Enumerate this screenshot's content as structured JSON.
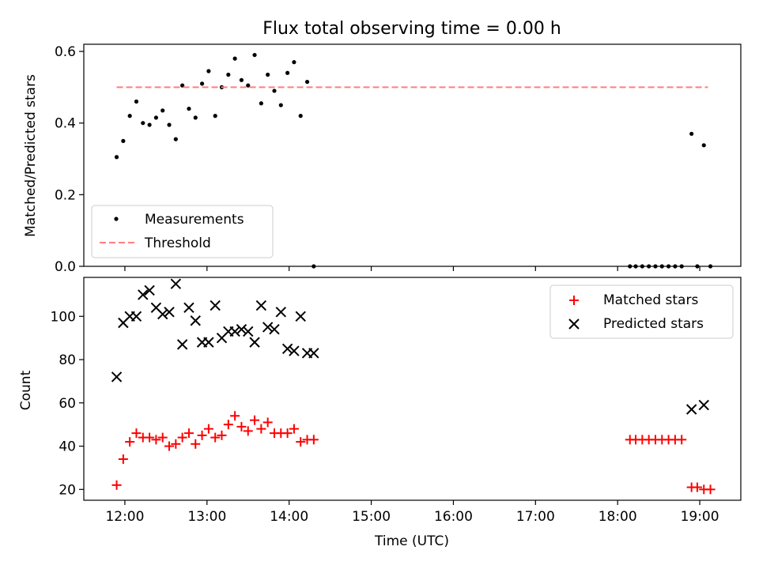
{
  "colors": {
    "measurement": "#000000",
    "threshold": "#ff7f7f",
    "matched": "#ff0000",
    "predicted": "#000000",
    "axes": "#000000",
    "legend_border": "#cccccc"
  },
  "chart_data": [
    {
      "type": "scatter",
      "title": "Flux total observing time = 0.00 h",
      "xlabel": "",
      "ylabel": "Matched/Predicted stars",
      "xlim": [
        11.5,
        19.5
      ],
      "ylim": [
        0,
        0.62
      ],
      "yticks": [
        0,
        0.2,
        0.4,
        0.6
      ],
      "ytick_labels": [
        "0.0",
        "0.2",
        "0.4",
        "0.6"
      ],
      "xticks": [
        12,
        13,
        14,
        15,
        16,
        17,
        18,
        19
      ],
      "legend_position": "lower-left",
      "series": [
        {
          "name": "Measurements",
          "marker": "dot",
          "x": [
            11.9,
            11.98,
            12.06,
            12.14,
            12.22,
            12.3,
            12.38,
            12.46,
            12.54,
            12.62,
            12.7,
            12.78,
            12.86,
            12.94,
            13.02,
            13.1,
            13.18,
            13.26,
            13.34,
            13.42,
            13.5,
            13.58,
            13.66,
            13.74,
            13.82,
            13.9,
            13.98,
            14.06,
            14.14,
            14.22,
            14.3,
            18.15,
            18.22,
            18.3,
            18.38,
            18.46,
            18.54,
            18.62,
            18.7,
            18.78,
            18.9,
            18.97,
            19.05,
            19.13
          ],
          "y": [
            0.305,
            0.35,
            0.42,
            0.46,
            0.4,
            0.395,
            0.415,
            0.435,
            0.395,
            0.355,
            0.505,
            0.44,
            0.415,
            0.51,
            0.545,
            0.42,
            0.5,
            0.535,
            0.58,
            0.52,
            0.505,
            0.59,
            0.455,
            0.535,
            0.49,
            0.45,
            0.54,
            0.57,
            0.42,
            0.515,
            0.0,
            0.0,
            0.0,
            0.0,
            0.0,
            0.0,
            0.0,
            0.0,
            0.0,
            0.0,
            0.37,
            0.0,
            0.338,
            0.0
          ]
        },
        {
          "name": "Threshold",
          "style": "dashed",
          "x": [
            11.9,
            19.1
          ],
          "y": [
            0.5,
            0.5
          ]
        }
      ]
    },
    {
      "type": "scatter",
      "title": "",
      "xlabel": "Time (UTC)",
      "ylabel": "Count",
      "xlim": [
        11.5,
        19.5
      ],
      "ylim": [
        15,
        118
      ],
      "yticks": [
        20,
        40,
        60,
        80,
        100
      ],
      "ytick_labels": [
        "20",
        "40",
        "60",
        "80",
        "100"
      ],
      "xticks": [
        12,
        13,
        14,
        15,
        16,
        17,
        18,
        19
      ],
      "xtick_labels": [
        "12:00",
        "13:00",
        "14:00",
        "15:00",
        "16:00",
        "17:00",
        "18:00",
        "19:00"
      ],
      "legend_position": "upper-right",
      "series": [
        {
          "name": "Matched stars",
          "marker": "plus",
          "x": [
            11.9,
            11.98,
            12.06,
            12.14,
            12.22,
            12.3,
            12.38,
            12.46,
            12.54,
            12.62,
            12.7,
            12.78,
            12.86,
            12.94,
            13.02,
            13.1,
            13.18,
            13.26,
            13.34,
            13.42,
            13.5,
            13.58,
            13.66,
            13.74,
            13.82,
            13.9,
            13.98,
            14.06,
            14.14,
            14.22,
            14.3,
            18.15,
            18.22,
            18.3,
            18.38,
            18.46,
            18.54,
            18.62,
            18.7,
            18.78,
            18.9,
            18.97,
            19.05,
            19.13
          ],
          "y": [
            22,
            34,
            42,
            46,
            44,
            44,
            43,
            44,
            40,
            41,
            44,
            46,
            41,
            45,
            48,
            44,
            45,
            50,
            54,
            49,
            47,
            52,
            48,
            51,
            46,
            46,
            46,
            48,
            42,
            43,
            43,
            43,
            43,
            43,
            43,
            43,
            43,
            43,
            43,
            43,
            21,
            21,
            20,
            20
          ]
        },
        {
          "name": "Predicted stars",
          "marker": "x",
          "x": [
            11.9,
            11.98,
            12.06,
            12.14,
            12.22,
            12.3,
            12.38,
            12.46,
            12.54,
            12.62,
            12.7,
            12.78,
            12.86,
            12.94,
            13.02,
            13.1,
            13.18,
            13.26,
            13.34,
            13.42,
            13.5,
            13.58,
            13.66,
            13.74,
            13.82,
            13.9,
            13.98,
            14.06,
            14.14,
            14.22,
            14.3,
            18.9,
            19.05
          ],
          "y": [
            72,
            97,
            100,
            100,
            110,
            112,
            104,
            101,
            102,
            115,
            87,
            104,
            98,
            88,
            88,
            105,
            90,
            93,
            93,
            94,
            93,
            88,
            105,
            95,
            94,
            102,
            85,
            84,
            100,
            83,
            83,
            57,
            59
          ]
        }
      ]
    }
  ]
}
